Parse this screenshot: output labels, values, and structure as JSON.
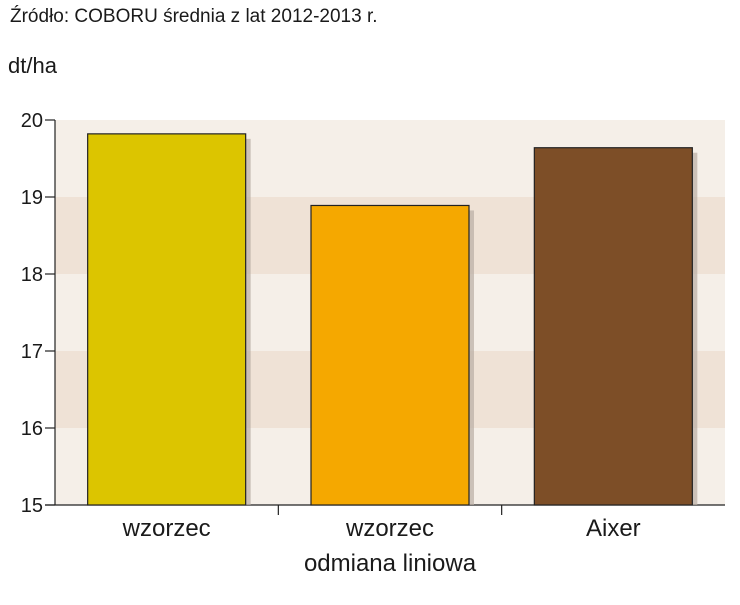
{
  "source_note": "Źródło: COBORU średnia z lat 2012-2013 r.",
  "chart_data": {
    "type": "bar",
    "title": "",
    "ylabel": "dt/ha",
    "xlabel": "",
    "ylim": [
      15,
      20
    ],
    "yticks": [
      "15",
      "16",
      "17",
      "18",
      "19",
      "20"
    ],
    "categories": [
      {
        "label": "wzorzec",
        "sublabel": ""
      },
      {
        "label": "wzorzec",
        "sublabel": "odmiana liniowa"
      },
      {
        "label": "Aixer",
        "sublabel": ""
      }
    ],
    "values": [
      19.82,
      18.89,
      19.64
    ],
    "colors": [
      "#dcc500",
      "#f5a800",
      "#7d4e27"
    ],
    "grid": "alternating horizontal bands",
    "legend": "none"
  }
}
